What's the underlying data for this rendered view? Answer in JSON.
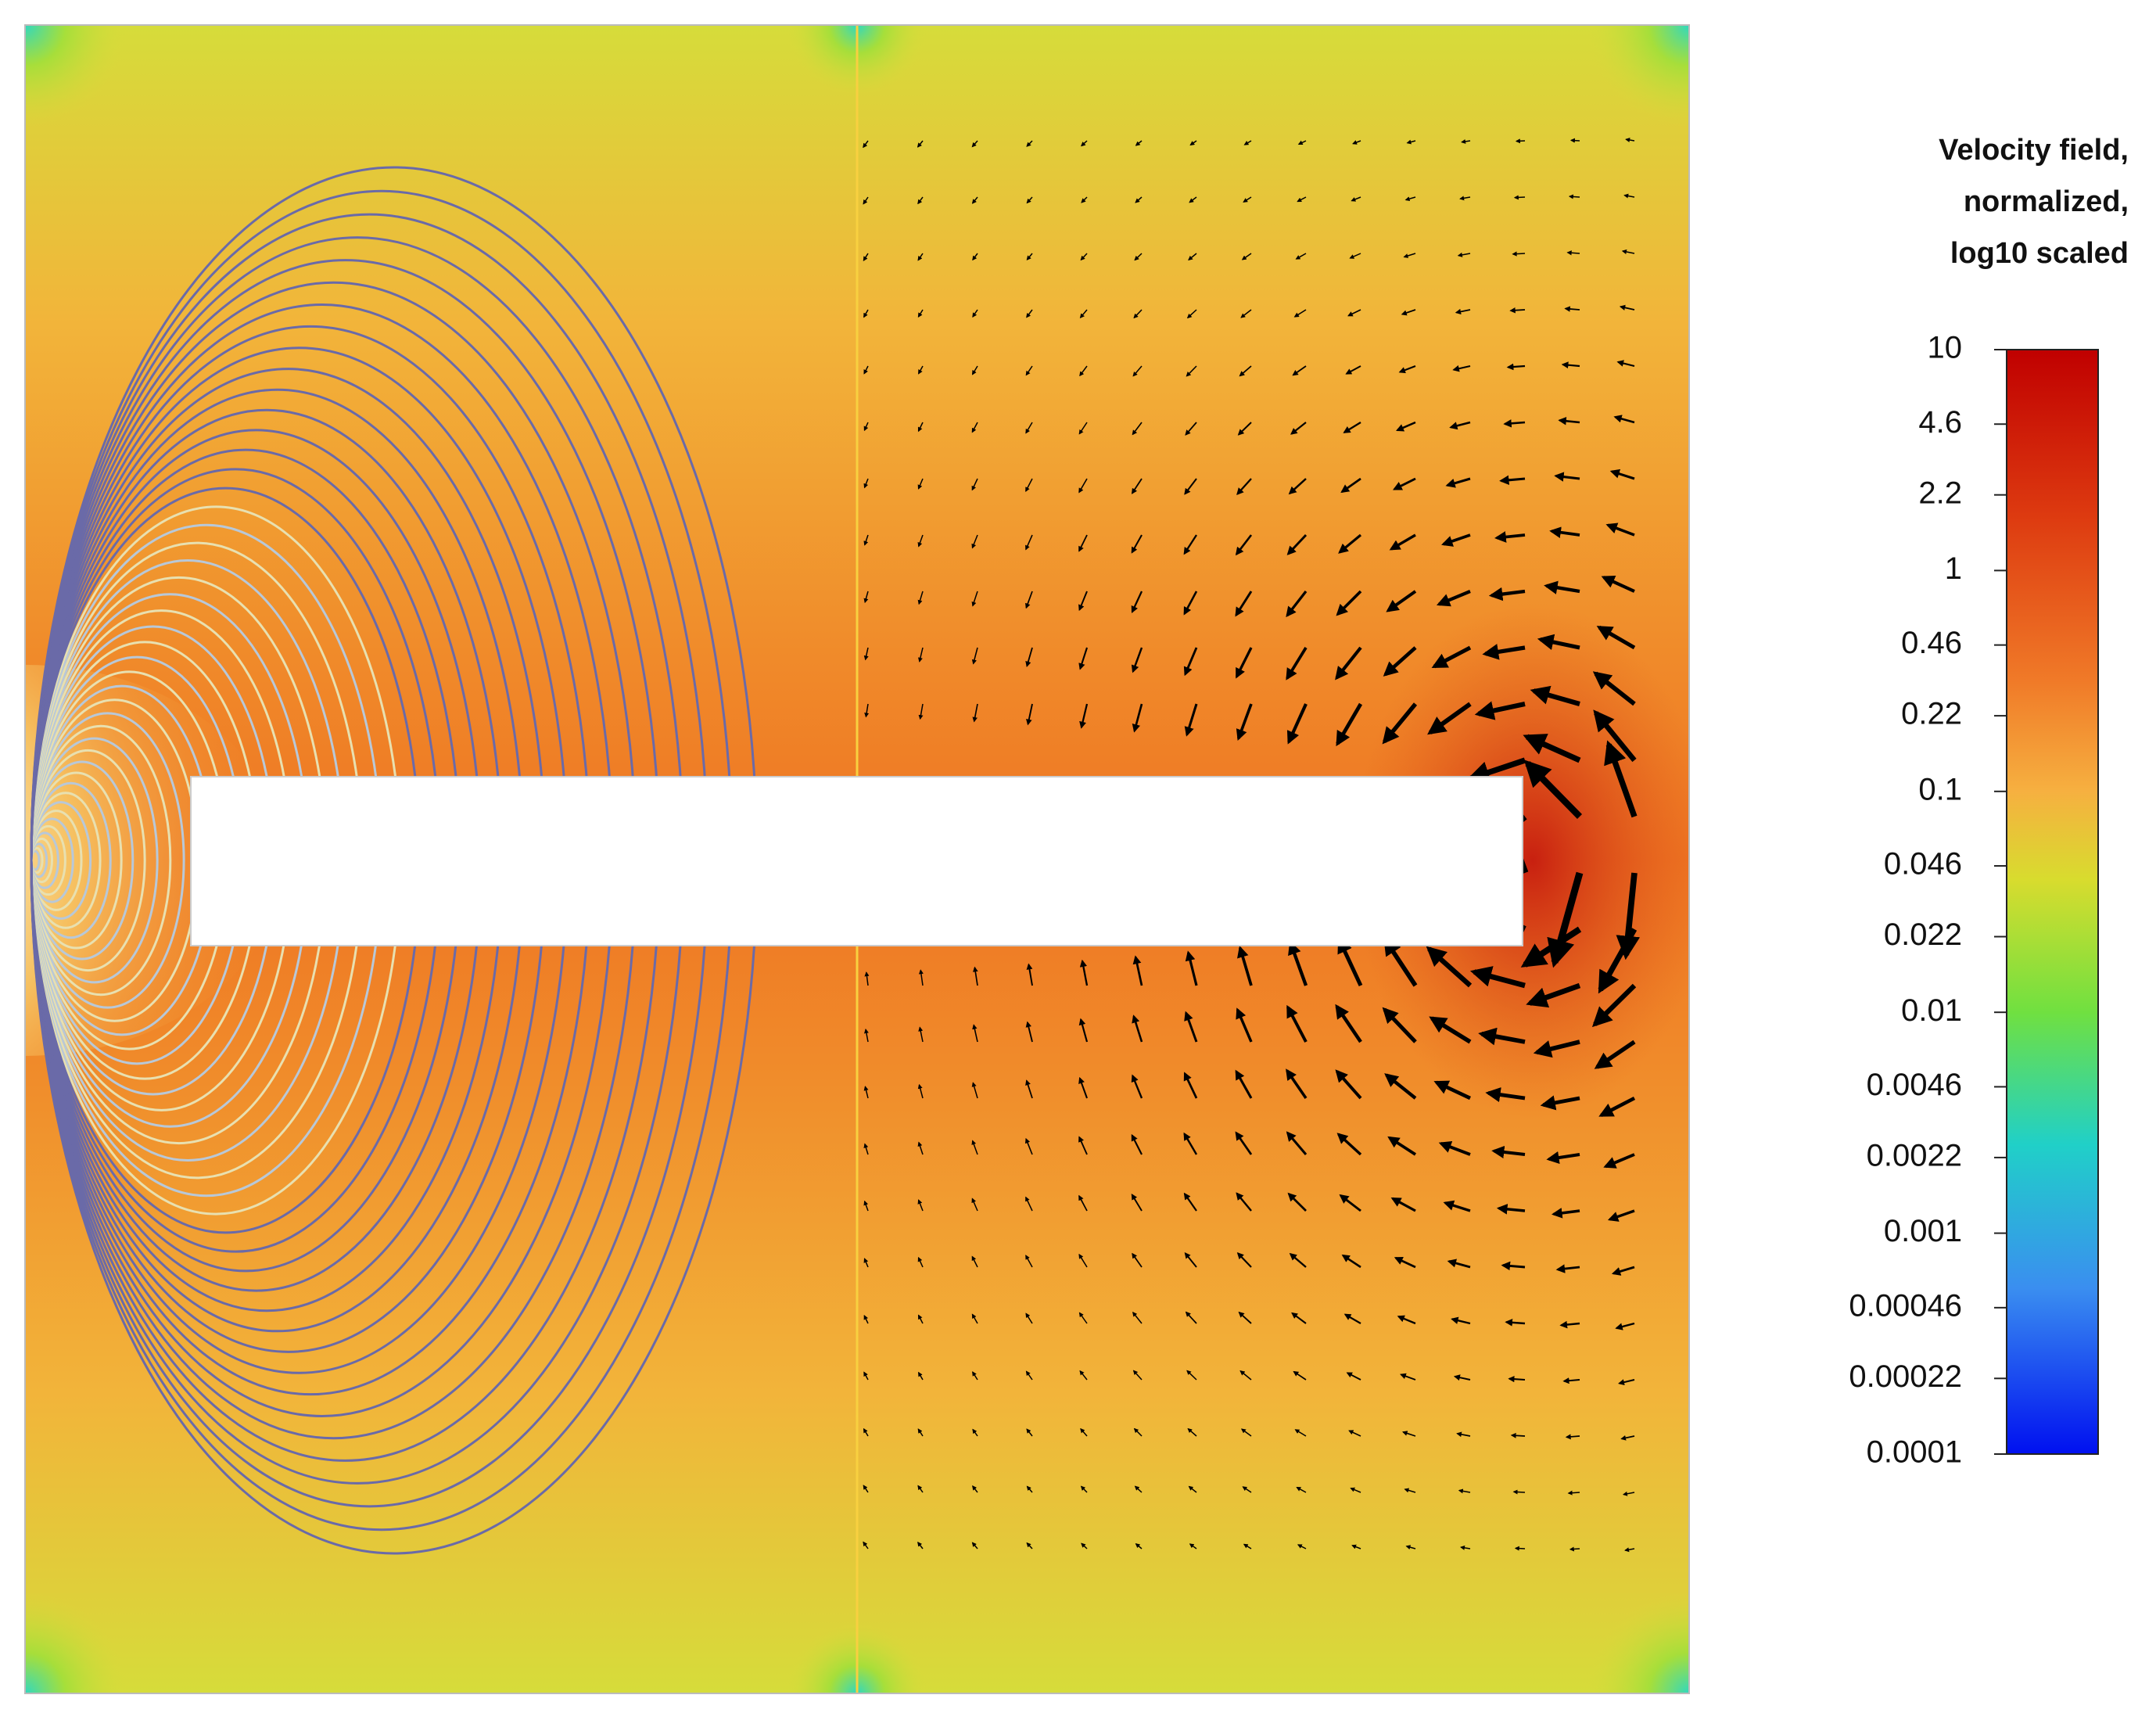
{
  "colorbar": {
    "title_lines": [
      "Velocity field,",
      "normalized,",
      "log10 scaled"
    ],
    "scale": "log",
    "range": [
      0.0001,
      10
    ],
    "ticks": [
      10,
      4.6,
      2.2,
      1,
      0.46,
      0.22,
      0.1,
      0.046,
      0.022,
      0.01,
      0.0046,
      0.0022,
      0.001,
      0.00046,
      0.00022,
      0.0001
    ]
  }
}
